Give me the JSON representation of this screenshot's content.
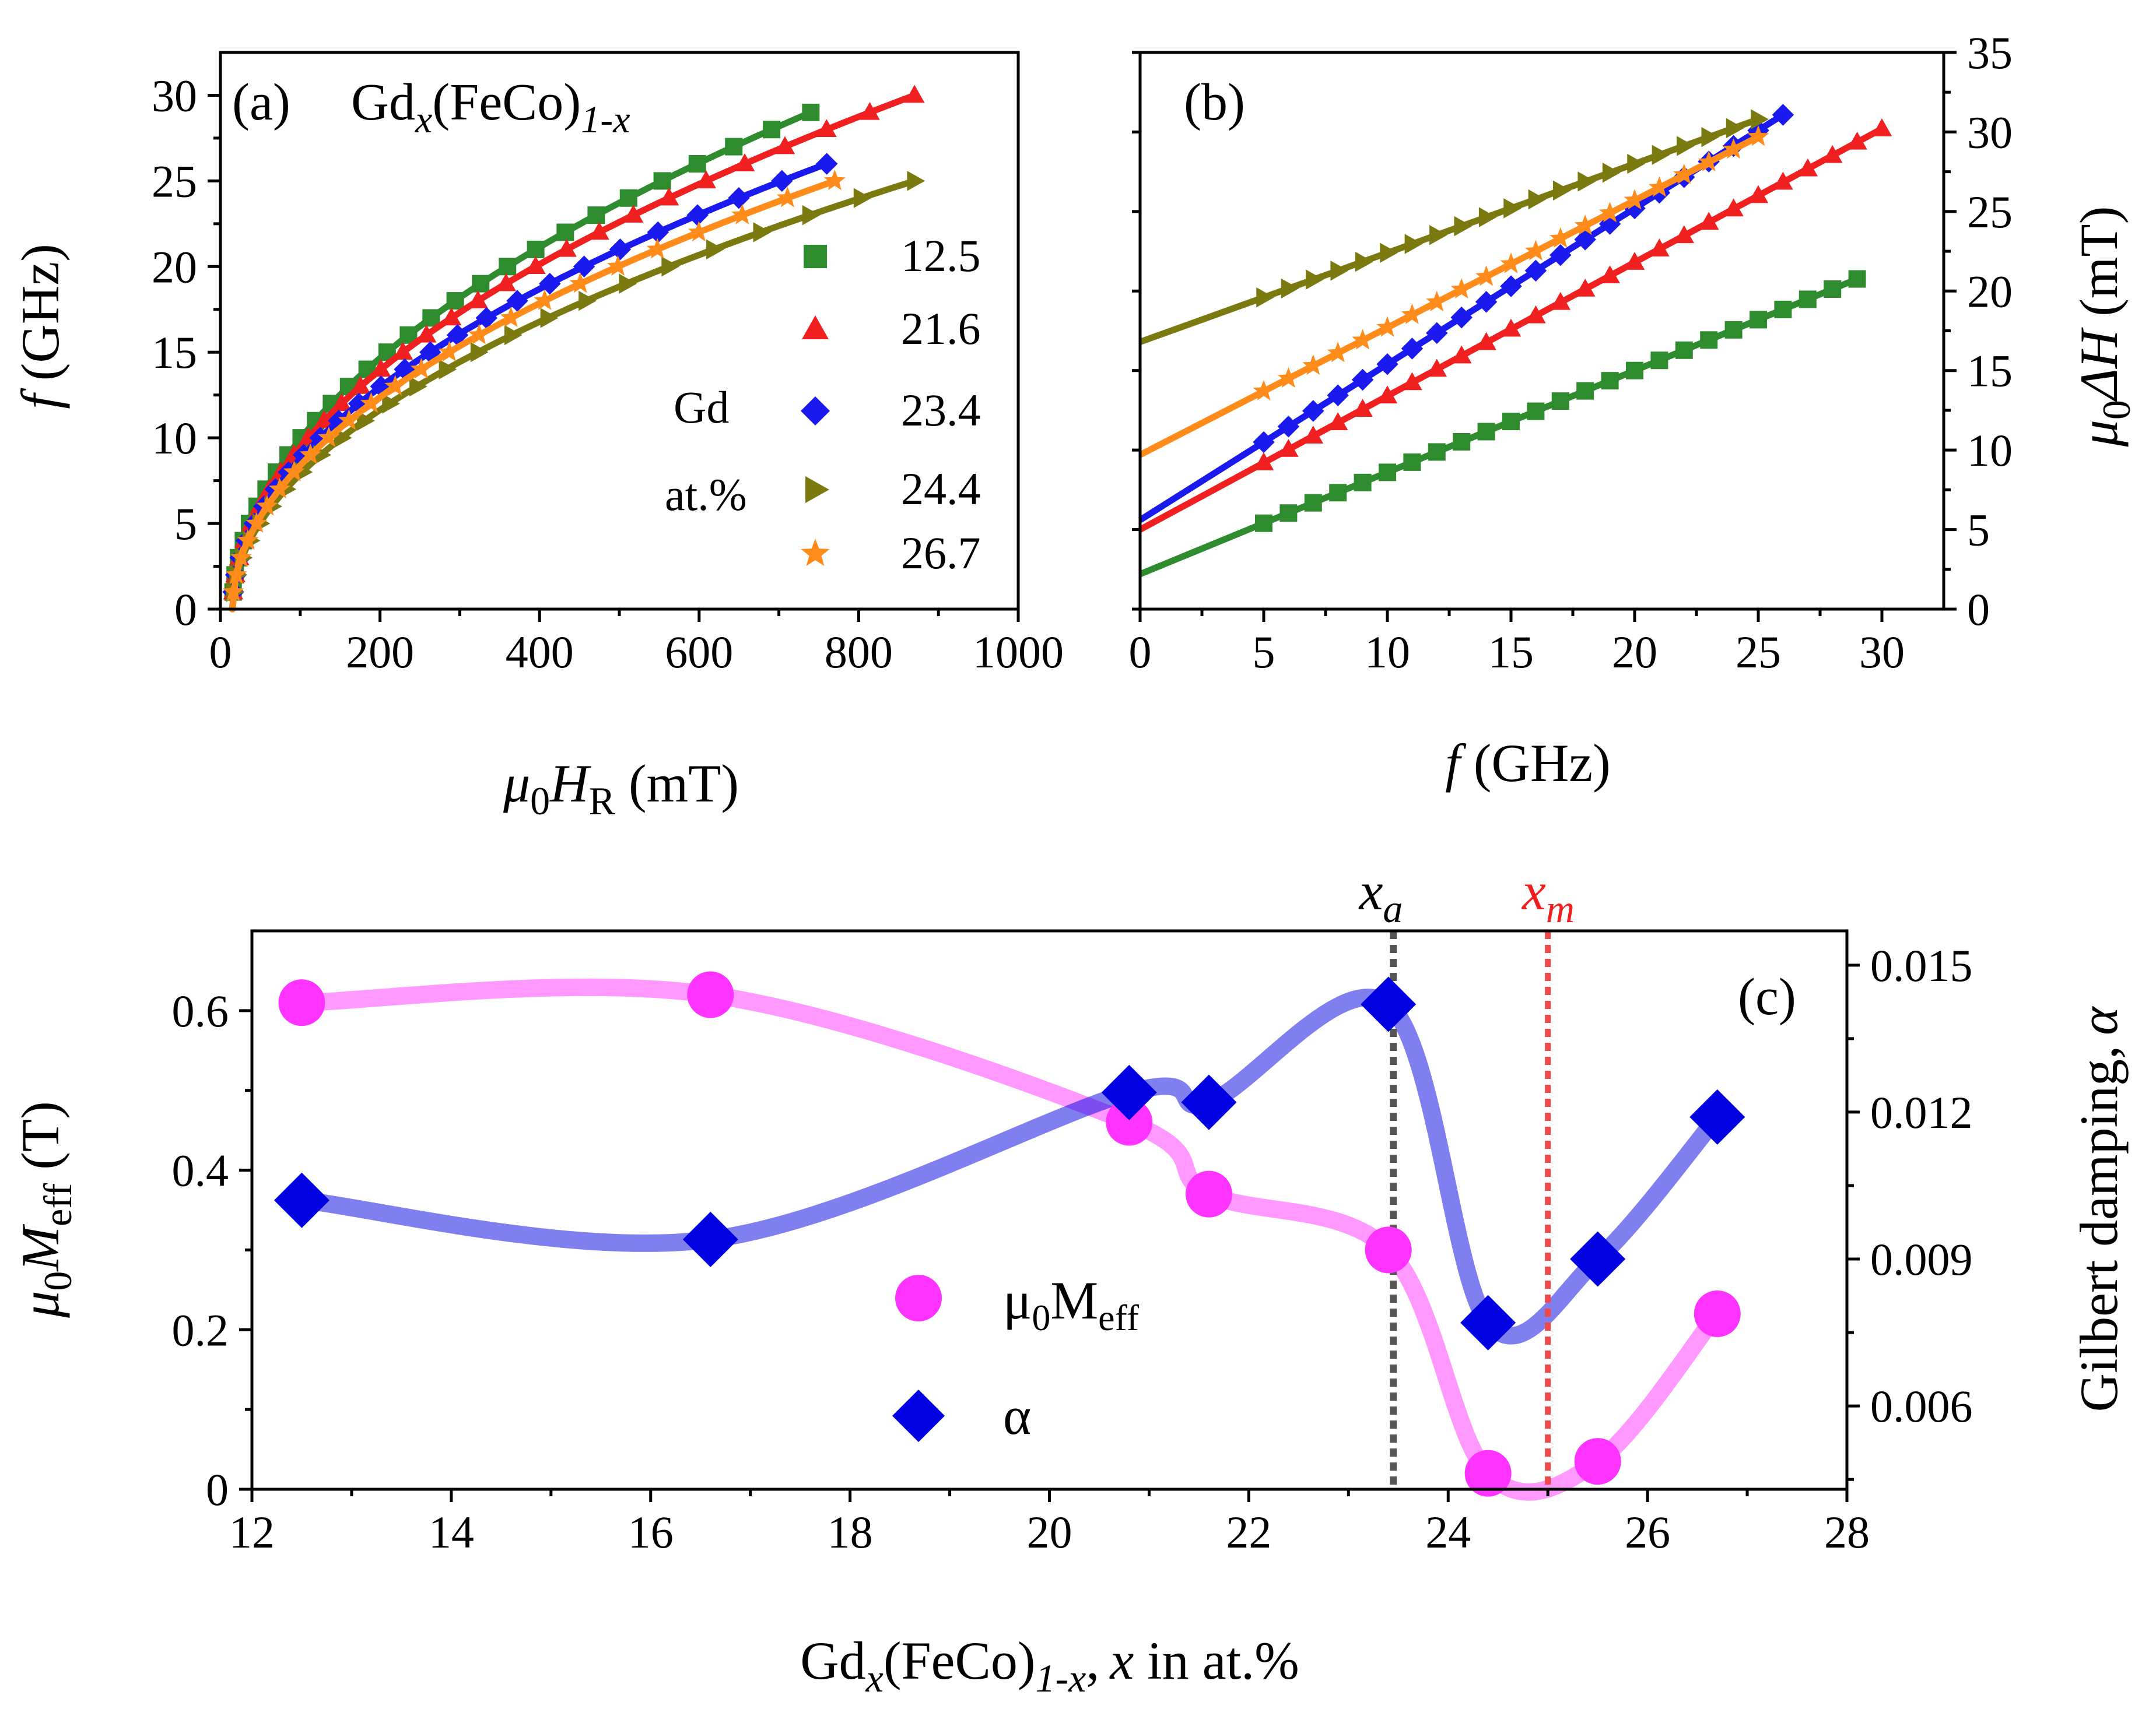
{
  "colors": {
    "g12_5": "#2e8b2e",
    "g21_6": "#f02020",
    "g23_4": "#1a1aee",
    "g24_4": "#7a7a10",
    "g26_7": "#ff8c1a",
    "m_eff": "#ff33ff",
    "alpha": "#0000e0",
    "xa_line": "#555555",
    "xm_line": "#f04848"
  },
  "chart_data": [
    {
      "id": "a",
      "type": "scatter",
      "panel_label": "(a)",
      "title_main": "Gd",
      "title_sub1": "x",
      "title_mid": "(FeCo)",
      "title_sub2": "1-x",
      "xlabel_mu": "μ",
      "xlabel_sub0": "0",
      "xlabel_H": "H",
      "xlabel_subR": "R",
      "xlabel_unit": " (mT)",
      "ylabel_f": "f",
      "ylabel_unit": " (GHz)",
      "xlim": [
        0,
        1000
      ],
      "ylim": [
        0,
        32.5
      ],
      "xticks": [
        "0",
        "200",
        "400",
        "600",
        "800",
        "1000"
      ],
      "yticks": [
        "0",
        "5",
        "10",
        "15",
        "20",
        "25",
        "30"
      ],
      "legend_title_1": "Gd",
      "legend_title_2": "at.%",
      "series": [
        {
          "name": "12.5",
          "marker": "square",
          "color_key": "g12_5",
          "Hmax": 740,
          "fmax": 29,
          "fmin": 0.5
        },
        {
          "name": "21.6",
          "marker": "triangle-up",
          "color_key": "g21_6",
          "Hmax": 870,
          "fmax": 30,
          "fmin": 0.5
        },
        {
          "name": "23.4",
          "marker": "diamond",
          "color_key": "g23_4",
          "Hmax": 760,
          "fmax": 26,
          "fmin": 0.5
        },
        {
          "name": "24.4",
          "marker": "triangle-right",
          "color_key": "g24_4",
          "Hmax": 870,
          "fmax": 25,
          "fmin": 0.5
        },
        {
          "name": "26.7",
          "marker": "star",
          "color_key": "g26_7",
          "Hmax": 770,
          "fmax": 25,
          "fmin": 0.5
        }
      ]
    },
    {
      "id": "b",
      "type": "scatter",
      "panel_label": "(b)",
      "xlabel_f": "f",
      "xlabel_unit": " (GHz)",
      "ylabel_mu": "μ",
      "ylabel_sub0": "0",
      "ylabel_dH": "ΔH",
      "ylabel_unit": " (mT)",
      "xlim": [
        0,
        32.5
      ],
      "ylim": [
        0,
        35
      ],
      "xticks": [
        "0",
        "5",
        "10",
        "15",
        "20",
        "25",
        "30"
      ],
      "yticks": [
        "0",
        "5",
        "10",
        "15",
        "20",
        "25",
        "30",
        "35"
      ],
      "series": [
        {
          "name": "12.5",
          "marker": "square",
          "color_key": "g12_5",
          "intercept": 2.2,
          "slope": 0.64,
          "fstart": 5,
          "fend": 29
        },
        {
          "name": "21.6",
          "marker": "triangle-up",
          "color_key": "g21_6",
          "intercept": 5.0,
          "slope": 0.84,
          "fstart": 5,
          "fend": 30
        },
        {
          "name": "23.4",
          "marker": "diamond",
          "color_key": "g23_4",
          "intercept": 5.6,
          "slope": 0.98,
          "fstart": 5,
          "fend": 26
        },
        {
          "name": "24.4",
          "marker": "triangle-right",
          "color_key": "g24_4",
          "intercept": 16.8,
          "slope": 0.56,
          "fstart": 5,
          "fend": 25
        },
        {
          "name": "26.7",
          "marker": "star",
          "color_key": "g26_7",
          "intercept": 9.7,
          "slope": 0.8,
          "fstart": 5,
          "fend": 25
        }
      ]
    },
    {
      "id": "c",
      "type": "line",
      "panel_label": "(c)",
      "xlabel_pre": "Gd",
      "xlabel_sub1": "x",
      "xlabel_mid": "(FeCo)",
      "xlabel_sub2": "1-x",
      "xlabel_comma": ",",
      "xlabel_x": "x",
      "xlabel_post": " in at.%",
      "ylabel_mu": "μ",
      "ylabel_sub0": "0",
      "ylabel_M": "M",
      "ylabel_sub": "eff",
      "ylabel_unit": " (T)",
      "y2label_text": "Gilbert damping,",
      "y2label_alpha": "α",
      "xlim": [
        12,
        28
      ],
      "ylim": [
        0,
        0.7
      ],
      "y2lim": [
        0.0043,
        0.0157
      ],
      "xticks": [
        "12",
        "14",
        "16",
        "18",
        "20",
        "22",
        "24",
        "26",
        "28"
      ],
      "yticks": [
        "0",
        "0.2",
        "0.4",
        "0.6"
      ],
      "y2ticks": [
        "0.006",
        "0.009",
        "0.012",
        "0.015"
      ],
      "xa_label": "x",
      "xa_sub": "a",
      "xa_value": 23.45,
      "xm_label": "x",
      "xm_sub": "m",
      "xm_value": 25.0,
      "x": [
        12.5,
        16.6,
        20.8,
        21.6,
        23.4,
        24.4,
        25.5,
        26.7
      ],
      "series": [
        {
          "name": "μ0Meff",
          "legend_main": "μ",
          "legend_sub0": "0",
          "legend_M": "M",
          "legend_sub": "eff",
          "axis": "left",
          "marker": "circle",
          "color_key": "m_eff",
          "values": [
            0.61,
            0.62,
            0.46,
            0.37,
            0.3,
            0.02,
            0.035,
            0.22
          ]
        },
        {
          "name": "α",
          "legend_main": "α",
          "axis": "right",
          "marker": "diamond",
          "color_key": "alpha",
          "values": [
            0.0102,
            0.0094,
            0.0124,
            0.0122,
            0.0142,
            0.0077,
            0.009,
            0.0119
          ]
        }
      ]
    }
  ]
}
